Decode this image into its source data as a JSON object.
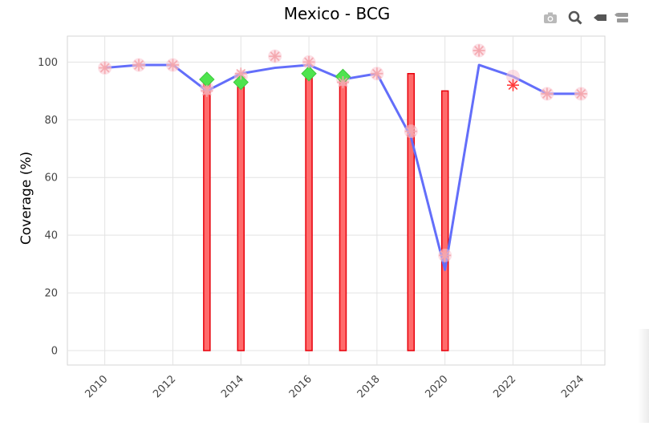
{
  "chart_data": {
    "type": "combo",
    "title": "Mexico - BCG",
    "xlabel": "",
    "ylabel": "Coverage (%)",
    "xlim": [
      2008.9,
      2024.7
    ],
    "ylim": [
      -5,
      109
    ],
    "x_ticks": [
      "2010",
      "2012",
      "2014",
      "2016",
      "2018",
      "2020",
      "2022",
      "2024"
    ],
    "y_ticks": [
      "0",
      "20",
      "40",
      "60",
      "80",
      "100"
    ],
    "grid": true,
    "legend": "none",
    "colors": {
      "line": "#636efa",
      "bar_fill": "#ff6b6b",
      "bar_stroke": "#e8000b",
      "diamond": "#4ee44e",
      "asterisk": "#ff3b3b",
      "asterisk_faint": "#f4a6ad",
      "halo": "#f9c5d0"
    },
    "line": {
      "x": [
        2010,
        2011,
        2012,
        2013,
        2014,
        2015,
        2016,
        2017,
        2018,
        2019,
        2020,
        2021,
        2022,
        2023,
        2024
      ],
      "y": [
        98,
        99,
        99,
        90,
        96,
        98,
        99,
        94,
        96,
        74,
        28,
        99,
        95,
        89,
        89
      ]
    },
    "bars": {
      "x": [
        2013,
        2014,
        2016,
        2017,
        2019,
        2020
      ],
      "y": [
        93,
        93,
        96,
        95,
        96,
        90
      ]
    },
    "diamonds": {
      "x": [
        2013,
        2014,
        2016,
        2017
      ],
      "y": [
        94,
        93,
        96,
        95
      ]
    },
    "asterisks": {
      "x": [
        2010,
        2011,
        2012,
        2013,
        2014,
        2015,
        2016,
        2017,
        2018,
        2019,
        2020,
        2021,
        2022,
        2023,
        2024
      ],
      "y": [
        98,
        99,
        99,
        90,
        96,
        102,
        100,
        93,
        96,
        76,
        33,
        104,
        92,
        89,
        89
      ]
    },
    "halos": {
      "x": [
        2010,
        2011,
        2012,
        2013,
        2014,
        2015,
        2016,
        2017,
        2018,
        2019,
        2020,
        2021,
        2022,
        2023,
        2024
      ],
      "y": [
        98,
        99,
        99,
        91,
        95,
        102,
        100,
        94,
        96,
        76,
        33,
        104,
        95,
        89,
        89
      ]
    }
  },
  "toolbar": {
    "icons": [
      "camera-icon",
      "zoom-icon",
      "pan-icon",
      "compare-icon"
    ]
  }
}
